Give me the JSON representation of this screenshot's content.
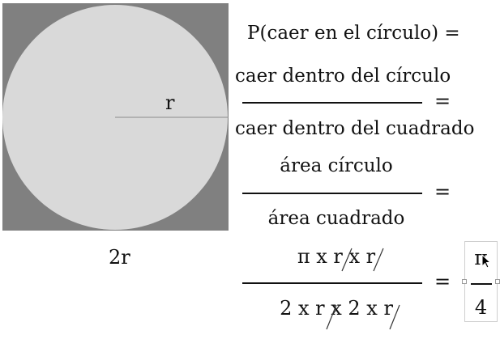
{
  "figure": {
    "radius_label": "r",
    "diameter_label": "2r",
    "colors": {
      "square": "#808080",
      "circle": "#d9d9d9",
      "radius_line": "#8c8c8c"
    }
  },
  "equation": {
    "line1": "P(caer en el círculo) =",
    "frac1": {
      "numerator": "caer dentro del círculo",
      "denominator": "caer dentro del cuadrado"
    },
    "frac2": {
      "numerator": "área círculo",
      "denominator": "área cuadrado"
    },
    "frac3": {
      "numerator": "π x r x r",
      "denominator": "2 x r x 2 x r"
    },
    "equals": "=",
    "result": {
      "numerator": "π",
      "denominator": "4"
    }
  },
  "icons": {
    "cursor": "mouse-pointer-icon"
  }
}
